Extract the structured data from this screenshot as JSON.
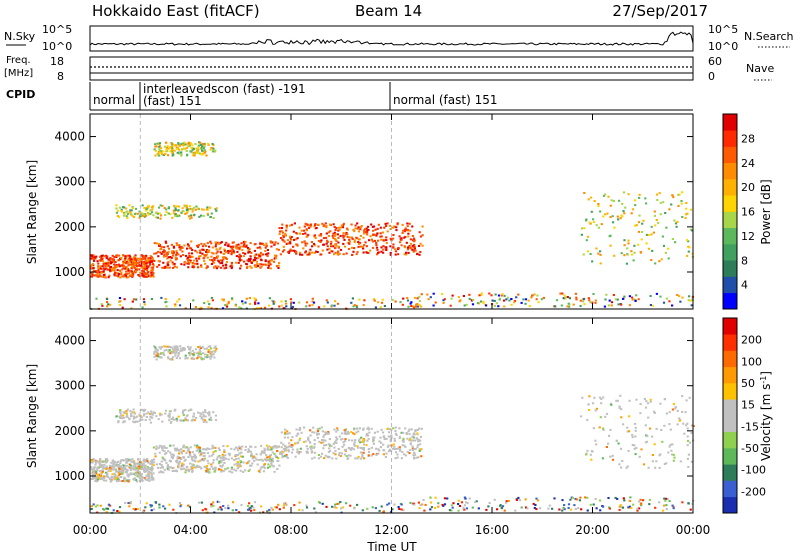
{
  "header": {
    "station": "Hokkaido East (fitACF)",
    "beam": "Beam 14",
    "date": "27/Sep/2017"
  },
  "noise": {
    "left_label": "N.Sky",
    "right_label": "N.Search",
    "left_ticks": [
      "10^5",
      "10^0"
    ],
    "right_ticks": [
      "10^5",
      "10^0"
    ]
  },
  "freq": {
    "left_label_1": "Freq.",
    "left_label_2": "[MHz]",
    "right_label": "Nave",
    "left_ticks": [
      "18",
      "8"
    ],
    "right_ticks": [
      "60",
      "0"
    ]
  },
  "cpid": {
    "label": "CPID",
    "segments": [
      {
        "name": "normal",
        "start_h": 0.0,
        "end_h": 2.0
      },
      {
        "name": "interleavedscon (fast) -191",
        "sub": "(fast) 151",
        "start_h": 2.0,
        "end_h": 12.0
      },
      {
        "name": "normal (fast) 151",
        "start_h": 12.0,
        "end_h": 24.0
      }
    ]
  },
  "power_panel": {
    "ylabel": "Slant Range [km]",
    "colorbar_label": "Power [dB]",
    "colorbar_ticks": [
      "28",
      "24",
      "20",
      "16",
      "12",
      "8",
      "4"
    ],
    "colors": [
      "#0000ff",
      "#1f4fa8",
      "#2e7d5a",
      "#3fa05f",
      "#5cb85c",
      "#a8d64a",
      "#ffd400",
      "#ffb000",
      "#ff8c00",
      "#ff5a00",
      "#ff2a00",
      "#e00000"
    ]
  },
  "velocity_panel": {
    "ylabel": "Slant Range [km]",
    "colorbar_label": "Velocity [m s^-1]",
    "colorbar_ticks": [
      "200",
      "100",
      "50",
      "15",
      "-15",
      "-50",
      "-100",
      "-200"
    ],
    "colors": [
      "#1a2fb0",
      "#3a5fd0",
      "#2e7d5a",
      "#5db85a",
      "#8fd14f",
      "#c0c0c0",
      "#c0c0c0",
      "#ffc000",
      "#ff9a00",
      "#ff6a00",
      "#ff3000",
      "#e00000"
    ]
  },
  "xaxis": {
    "label": "Time UT",
    "ticks": [
      "00:00",
      "04:00",
      "08:00",
      "12:00",
      "16:00",
      "20:00",
      "00:00"
    ]
  },
  "chart_data": {
    "type": "heatmap",
    "x_range_hours": [
      0,
      24
    ],
    "y_range_km": [
      180,
      4500
    ],
    "y_ticks": [
      1000,
      2000,
      3000,
      4000
    ],
    "power_regions": [
      {
        "t0": 0.0,
        "t1": 2.5,
        "r0": 900,
        "r1": 1400,
        "level": "high"
      },
      {
        "t0": 2.5,
        "t1": 7.5,
        "r0": 1100,
        "r1": 1700,
        "level": "high"
      },
      {
        "t0": 7.5,
        "t1": 13.2,
        "r0": 1400,
        "r1": 2100,
        "level": "high"
      },
      {
        "t0": 0.0,
        "t1": 13.0,
        "r0": 200,
        "r1": 450,
        "level": "low"
      },
      {
        "t0": 13.0,
        "t1": 24.0,
        "r0": 250,
        "r1": 550,
        "level": "low"
      },
      {
        "t0": 19.5,
        "t1": 24.0,
        "r0": 1200,
        "r1": 2800,
        "level": "mid"
      },
      {
        "t0": 1.0,
        "t1": 5.0,
        "r0": 2200,
        "r1": 2500,
        "level": "mid"
      },
      {
        "t0": 2.5,
        "t1": 5.0,
        "r0": 3600,
        "r1": 3900,
        "level": "mid"
      }
    ]
  }
}
